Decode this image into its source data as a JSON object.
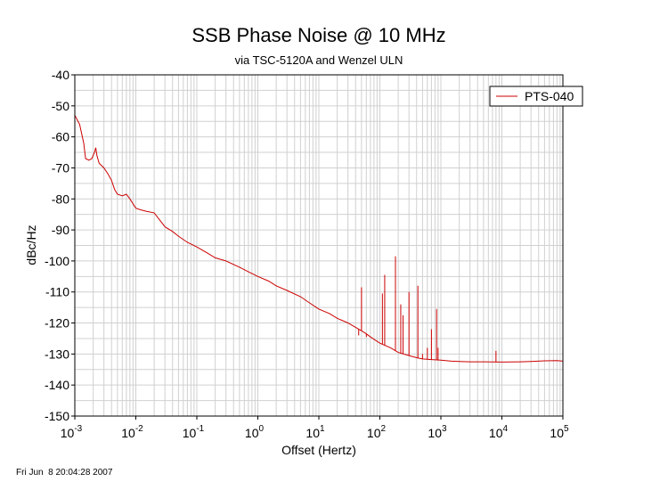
{
  "chart_data": {
    "type": "line",
    "title": "SSB Phase Noise @ 10 MHz",
    "subtitle": "via TSC-5120A and Wenzel ULN",
    "xlabel": "Offset (Hertz)",
    "ylabel": "dBc/Hz",
    "x_scale": "log",
    "xlim": [
      0.001,
      100000
    ],
    "ylim": [
      -150,
      -40
    ],
    "x_ticks": [
      {
        "base": "10",
        "exp": "-3",
        "value": 0.001
      },
      {
        "base": "10",
        "exp": "-2",
        "value": 0.01
      },
      {
        "base": "10",
        "exp": "-1",
        "value": 0.1
      },
      {
        "base": "10",
        "exp": "0",
        "value": 1
      },
      {
        "base": "10",
        "exp": "1",
        "value": 10
      },
      {
        "base": "10",
        "exp": "2",
        "value": 100
      },
      {
        "base": "10",
        "exp": "3",
        "value": 1000
      },
      {
        "base": "10",
        "exp": "4",
        "value": 10000
      },
      {
        "base": "10",
        "exp": "5",
        "value": 100000
      }
    ],
    "y_ticks": [
      "-40",
      "-50",
      "-60",
      "-70",
      "-80",
      "-90",
      "-100",
      "-110",
      "-120",
      "-130",
      "-140",
      "-150"
    ],
    "grid": true,
    "legend_position": "top-right",
    "series": [
      {
        "name": "PTS-040",
        "color": "#cc0000",
        "points": [
          [
            0.001,
            -53
          ],
          [
            0.0012,
            -56
          ],
          [
            0.0014,
            -62
          ],
          [
            0.0015,
            -67
          ],
          [
            0.0017,
            -67.5
          ],
          [
            0.0019,
            -67
          ],
          [
            0.0021,
            -65
          ],
          [
            0.0022,
            -63.5
          ],
          [
            0.0023,
            -66
          ],
          [
            0.0025,
            -68.5
          ],
          [
            0.003,
            -70
          ],
          [
            0.0035,
            -72
          ],
          [
            0.004,
            -74
          ],
          [
            0.0045,
            -77
          ],
          [
            0.005,
            -78.5
          ],
          [
            0.006,
            -79
          ],
          [
            0.007,
            -78.5
          ],
          [
            0.008,
            -80
          ],
          [
            0.01,
            -83
          ],
          [
            0.012,
            -83.5
          ],
          [
            0.015,
            -84
          ],
          [
            0.02,
            -84.5
          ],
          [
            0.025,
            -87
          ],
          [
            0.03,
            -89
          ],
          [
            0.04,
            -90.5
          ],
          [
            0.05,
            -92
          ],
          [
            0.07,
            -94
          ],
          [
            0.1,
            -95.5
          ],
          [
            0.15,
            -97.5
          ],
          [
            0.2,
            -99
          ],
          [
            0.3,
            -100
          ],
          [
            0.5,
            -102
          ],
          [
            0.7,
            -103.5
          ],
          [
            1,
            -105
          ],
          [
            1.5,
            -106.5
          ],
          [
            2,
            -108
          ],
          [
            3,
            -109.5
          ],
          [
            5,
            -111.5
          ],
          [
            7,
            -113.5
          ],
          [
            10,
            -115.5
          ],
          [
            15,
            -117
          ],
          [
            20,
            -118.5
          ],
          [
            30,
            -120
          ],
          [
            50,
            -122.5
          ],
          [
            60,
            -123.5
          ],
          [
            70,
            -124.5
          ],
          [
            100,
            -126.5
          ],
          [
            150,
            -128
          ],
          [
            200,
            -129.5
          ],
          [
            300,
            -130.5
          ],
          [
            400,
            -131.2
          ],
          [
            500,
            -131.6
          ],
          [
            700,
            -131.8
          ],
          [
            1000,
            -132
          ],
          [
            1500,
            -132.3
          ],
          [
            2000,
            -132.4
          ],
          [
            3000,
            -132.5
          ],
          [
            5000,
            -132.5
          ],
          [
            10000,
            -132.6
          ],
          [
            20000,
            -132.5
          ],
          [
            30000,
            -132.4
          ],
          [
            50000,
            -132.2
          ],
          [
            80000,
            -132.1
          ],
          [
            100000,
            -132.3
          ]
        ],
        "spurs": [
          [
            45,
            -124
          ],
          [
            50,
            -108.5
          ],
          [
            60,
            -124.5
          ],
          [
            110,
            -110.5
          ],
          [
            120,
            -104.5
          ],
          [
            180,
            -98.5
          ],
          [
            220,
            -114
          ],
          [
            240,
            -117.5
          ],
          [
            300,
            -110
          ],
          [
            420,
            -108
          ],
          [
            500,
            -130
          ],
          [
            600,
            -128
          ],
          [
            700,
            -122
          ],
          [
            850,
            -115.5
          ],
          [
            900,
            -128
          ],
          [
            8000,
            -129
          ]
        ]
      }
    ]
  },
  "footer": {
    "timestamp": "Fri Jun  8 20:04:28 2007"
  }
}
